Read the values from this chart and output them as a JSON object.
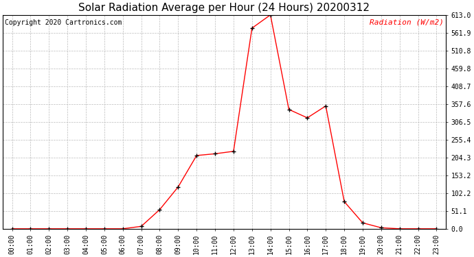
{
  "title": "Solar Radiation Average per Hour (24 Hours) 20200312",
  "copyright_text": "Copyright 2020 Cartronics.com",
  "ylabel": "Radiation (W/m2)",
  "ylabel_color": "#ff0000",
  "hours": [
    0,
    1,
    2,
    3,
    4,
    5,
    6,
    7,
    8,
    9,
    10,
    11,
    12,
    13,
    14,
    15,
    16,
    17,
    18,
    19,
    20,
    21,
    22,
    23
  ],
  "values": [
    0.0,
    0.0,
    0.0,
    0.0,
    0.0,
    0.0,
    0.0,
    7.0,
    55.0,
    120.0,
    210.0,
    215.0,
    222.0,
    575.0,
    613.0,
    342.0,
    318.0,
    352.0,
    78.0,
    17.0,
    3.0,
    0.0,
    0.0,
    0.0
  ],
  "line_color": "#ff0000",
  "marker_color": "#000000",
  "background_color": "#ffffff",
  "grid_color": "#bbbbbb",
  "ylim_min": 0.0,
  "ylim_max": 613.0,
  "ytick_values": [
    0.0,
    51.1,
    102.2,
    153.2,
    204.3,
    255.4,
    306.5,
    357.6,
    408.7,
    459.8,
    510.8,
    561.9,
    613.0
  ],
  "ytick_labels": [
    "0.0",
    "51.1",
    "102.2",
    "153.2",
    "204.3",
    "255.4",
    "306.5",
    "357.6",
    "408.7",
    "459.8",
    "510.8",
    "561.9",
    "613.0"
  ],
  "title_fontsize": 11,
  "copyright_fontsize": 7,
  "ylabel_fontsize": 8,
  "tick_fontsize": 7
}
